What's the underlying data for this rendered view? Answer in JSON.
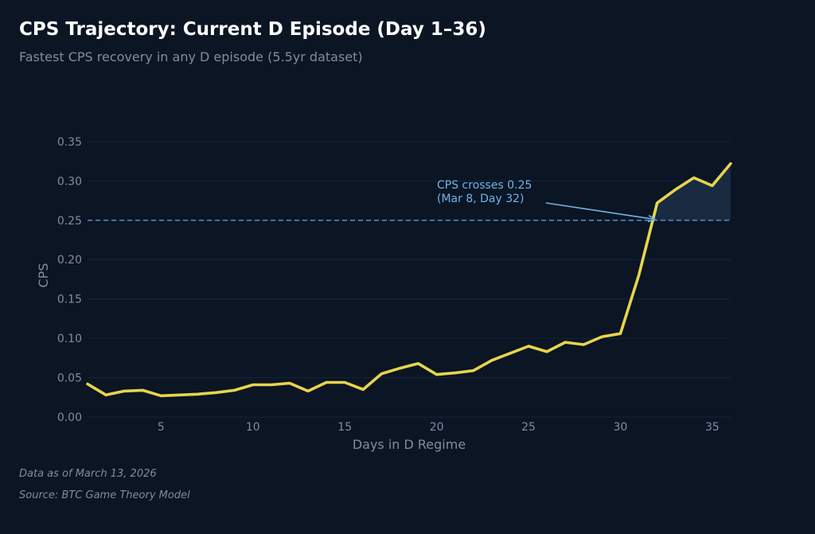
{
  "header": {
    "title": "CPS Trajectory: Current D Episode (Day 1–36)",
    "subtitle": "Fastest CPS recovery in any D episode (5.5yr dataset)"
  },
  "footer": {
    "data_as_of": "Data as of March 13, 2026",
    "source": "Source: BTC Game Theory Model"
  },
  "colors": {
    "background": "#0b1524",
    "line": "#e8d44d",
    "threshold": "#4f86b8",
    "annotation": "#6fb4e8",
    "axis_text": "#7f8da0",
    "fill": "#1b2d45"
  },
  "chart_data": {
    "type": "line",
    "xlabel": "Days in D Regime",
    "ylabel": "CPS",
    "xlim": [
      1,
      36
    ],
    "ylim": [
      0,
      0.36
    ],
    "x_ticks": [
      5,
      10,
      15,
      20,
      25,
      30,
      35
    ],
    "y_ticks": [
      0.0,
      0.05,
      0.1,
      0.15,
      0.2,
      0.25,
      0.3,
      0.35
    ],
    "y_tick_labels": [
      "0.00",
      "0.05",
      "0.10",
      "0.15",
      "0.20",
      "0.25",
      "0.30",
      "0.35"
    ],
    "grid": true,
    "series": [
      {
        "name": "CPS",
        "x": [
          1,
          2,
          3,
          4,
          5,
          6,
          7,
          8,
          9,
          10,
          11,
          12,
          13,
          14,
          15,
          16,
          17,
          18,
          19,
          20,
          21,
          22,
          23,
          24,
          25,
          26,
          27,
          28,
          29,
          30,
          31,
          32,
          33,
          34,
          35,
          36
        ],
        "values": [
          0.042,
          0.028,
          0.033,
          0.034,
          0.027,
          0.028,
          0.029,
          0.031,
          0.034,
          0.041,
          0.041,
          0.043,
          0.033,
          0.044,
          0.044,
          0.035,
          0.055,
          0.062,
          0.068,
          0.054,
          0.056,
          0.059,
          0.072,
          0.081,
          0.09,
          0.083,
          0.095,
          0.092,
          0.102,
          0.106,
          0.18,
          0.272,
          0.289,
          0.304,
          0.294,
          0.322
        ]
      }
    ],
    "threshold": {
      "value": 0.25,
      "style": "dashed"
    },
    "shaded_region": {
      "above": 0.25,
      "from_day": 32,
      "to_day": 36
    },
    "annotation": {
      "lines": [
        "CPS crosses 0.25",
        "(Mar 8, Day 32)"
      ],
      "target_x": 32,
      "target_y": 0.25
    }
  }
}
